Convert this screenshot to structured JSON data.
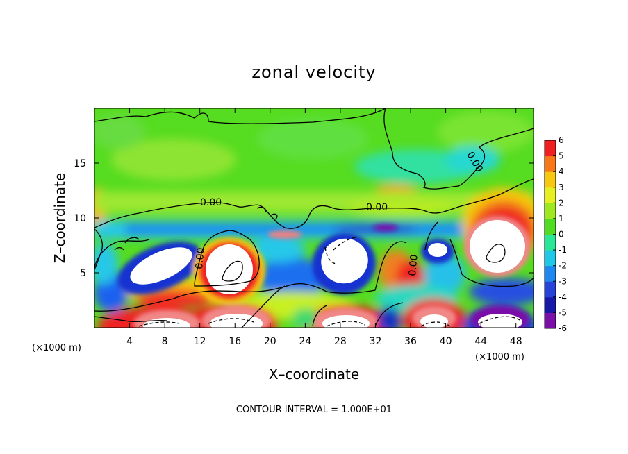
{
  "chart_data": {
    "type": "heatmap",
    "title": "zonal velocity",
    "xlabel": "X–coordinate",
    "ylabel": "Z–coordinate",
    "x_unit_left": "(×1000 m)",
    "x_unit_right": "(×1000 m)",
    "xlim": [
      0,
      50
    ],
    "ylim": [
      0,
      20
    ],
    "x_ticks": [
      4,
      8,
      12,
      16,
      20,
      24,
      28,
      32,
      36,
      40,
      44,
      48
    ],
    "y_ticks": [
      5,
      10,
      15
    ],
    "colorbar": {
      "ticks": [
        6,
        5,
        4,
        3,
        2,
        1,
        0,
        -1,
        -2,
        -3,
        -4,
        -5,
        -6
      ],
      "range": [
        -6,
        6
      ],
      "colors": [
        "#7a10a8",
        "#1818a8",
        "#2844d8",
        "#1c88f0",
        "#20c8e8",
        "#28e898",
        "#50dc20",
        "#9ee820",
        "#e6f020",
        "#f8c810",
        "#f87818",
        "#f02020",
        "#f08c8c"
      ]
    },
    "contour_label": "0.00",
    "annotation": "CONTOUR INTERVAL = 1.000E+01",
    "features": [
      {
        "kind": "positive-core",
        "x": 14.5,
        "z": 6.0
      },
      {
        "kind": "positive-core",
        "x": 44.5,
        "z": 7.8
      },
      {
        "kind": "negative-core",
        "x": 6.5,
        "z": 5.7
      },
      {
        "kind": "negative-core",
        "x": 29.5,
        "z": 6.8
      },
      {
        "kind": "negative-core",
        "x": 39.0,
        "z": 7.0
      },
      {
        "kind": "positive-core",
        "x": 8.0,
        "z": 0.5
      },
      {
        "kind": "positive-core",
        "x": 16.0,
        "z": 0.8
      },
      {
        "kind": "negative-core",
        "x": 28.0,
        "z": 0.6
      },
      {
        "kind": "positive-core",
        "x": 36.0,
        "z": 1.0
      },
      {
        "kind": "negative-core",
        "x": 45.5,
        "z": 0.8
      }
    ]
  }
}
